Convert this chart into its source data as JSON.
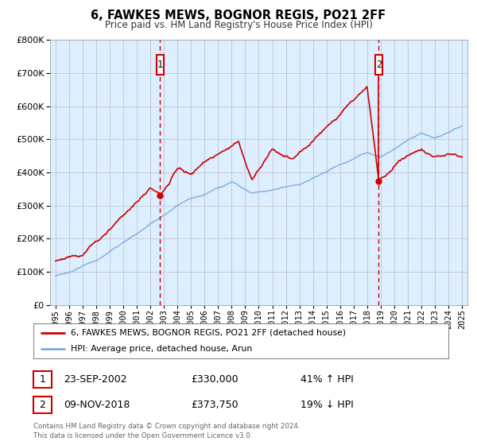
{
  "title": "6, FAWKES MEWS, BOGNOR REGIS, PO21 2FF",
  "subtitle": "Price paid vs. HM Land Registry's House Price Index (HPI)",
  "legend_line1": "6, FAWKES MEWS, BOGNOR REGIS, PO21 2FF (detached house)",
  "legend_line2": "HPI: Average price, detached house, Arun",
  "annotation1_date": "23-SEP-2002",
  "annotation1_price": "£330,000",
  "annotation1_hpi": "41% ↑ HPI",
  "annotation2_date": "09-NOV-2018",
  "annotation2_price": "£373,750",
  "annotation2_hpi": "19% ↓ HPI",
  "footer": "Contains HM Land Registry data © Crown copyright and database right 2024.\nThis data is licensed under the Open Government Licence v3.0.",
  "hpi_color": "#7aaadd",
  "price_color": "#cc0000",
  "dot_color": "#cc0000",
  "vline_color": "#cc0000",
  "bg_color": "#ddeeff",
  "plot_bg": "#ffffff",
  "grid_color": "#bbbbcc",
  "annotation_box_color": "#cc0000",
  "ylim": [
    0,
    800000
  ],
  "yticks": [
    0,
    100000,
    200000,
    300000,
    400000,
    500000,
    600000,
    700000,
    800000
  ],
  "x_start_year": 1995,
  "x_end_year": 2025,
  "sale1_year": 2002.72,
  "sale1_price": 330000,
  "sale2_year": 2018.85,
  "sale2_price": 373750
}
